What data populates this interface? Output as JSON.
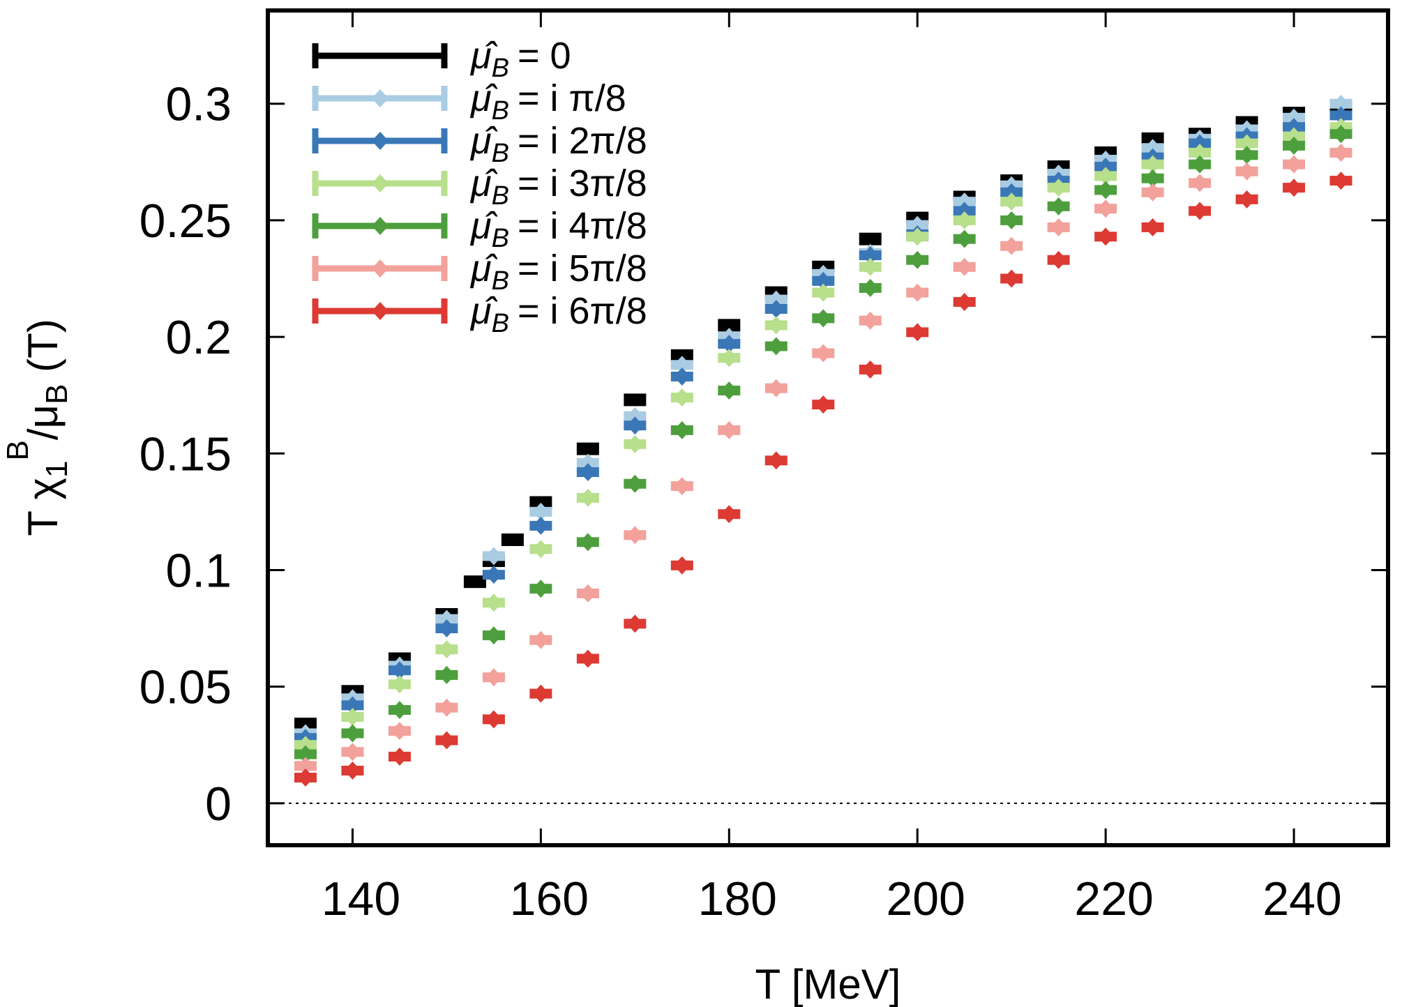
{
  "chart_data": {
    "type": "scatter",
    "xlabel": "T [MeV]",
    "ylabel": {
      "base": "T χ",
      "sub": "1",
      "sup": "B",
      "rest": "/μ",
      "sub2": "B",
      "tail": " (T)"
    },
    "xlim": [
      131,
      250
    ],
    "ylim": [
      -0.018,
      0.34
    ],
    "xticks": [
      140,
      160,
      180,
      200,
      220,
      240
    ],
    "yticks": [
      0,
      0.05,
      0.1,
      0.15,
      0.2,
      0.25,
      0.3
    ],
    "ytick_labels": [
      "0",
      "0.05",
      "0.1",
      "0.15",
      "0.2",
      "0.25",
      "0.3"
    ],
    "reference_line": {
      "y": 0,
      "style": "dotted"
    },
    "legend_position": "top-left",
    "legend_prefix": "μ̂",
    "legend_prefix_sub": "B",
    "series": [
      {
        "name": "μ̂B = 0",
        "legend_text": "= 0",
        "color": "#000000",
        "marker": "square",
        "x": [
          135,
          140,
          145,
          150,
          153,
          155,
          157,
          160,
          165,
          170,
          175,
          180,
          185,
          190,
          195,
          200,
          205,
          210,
          215,
          220,
          225,
          230,
          235,
          240,
          245
        ],
        "y": [
          0.034,
          0.048,
          0.062,
          0.081,
          0.095,
          0.104,
          0.113,
          0.129,
          0.152,
          0.173,
          0.192,
          0.205,
          0.219,
          0.23,
          0.242,
          0.251,
          0.26,
          0.267,
          0.273,
          0.279,
          0.285,
          0.287,
          0.292,
          0.296,
          0.299
        ]
      },
      {
        "name": "μ̂B = i π/8",
        "legend_text": "= i π/8",
        "color": "#a9cce3",
        "marker": "diamond",
        "x": [
          135,
          140,
          145,
          150,
          155,
          160,
          165,
          170,
          175,
          180,
          185,
          190,
          195,
          200,
          205,
          210,
          215,
          220,
          225,
          230,
          235,
          240,
          245
        ],
        "y": [
          0.03,
          0.045,
          0.059,
          0.079,
          0.106,
          0.125,
          0.146,
          0.166,
          0.188,
          0.2,
          0.216,
          0.227,
          0.236,
          0.248,
          0.258,
          0.265,
          0.27,
          0.276,
          0.281,
          0.285,
          0.289,
          0.294,
          0.3
        ]
      },
      {
        "name": "μ̂B = i 2π/8",
        "legend_text": "= i 2π/8",
        "color": "#3a77b7",
        "marker": "diamond",
        "x": [
          135,
          140,
          145,
          150,
          155,
          160,
          165,
          170,
          175,
          180,
          185,
          190,
          195,
          200,
          205,
          210,
          215,
          220,
          225,
          230,
          235,
          240,
          245
        ],
        "y": [
          0.028,
          0.042,
          0.057,
          0.075,
          0.098,
          0.119,
          0.142,
          0.162,
          0.183,
          0.197,
          0.212,
          0.224,
          0.235,
          0.244,
          0.254,
          0.262,
          0.267,
          0.273,
          0.277,
          0.283,
          0.286,
          0.29,
          0.295
        ]
      },
      {
        "name": "μ̂B = i 3π/8",
        "legend_text": "= i 3π/8",
        "color": "#b7df8c",
        "marker": "diamond",
        "x": [
          135,
          140,
          145,
          150,
          155,
          160,
          165,
          170,
          175,
          180,
          185,
          190,
          195,
          200,
          205,
          210,
          215,
          220,
          225,
          230,
          235,
          240,
          245
        ],
        "y": [
          0.025,
          0.037,
          0.051,
          0.066,
          0.086,
          0.109,
          0.131,
          0.154,
          0.174,
          0.191,
          0.205,
          0.219,
          0.23,
          0.243,
          0.25,
          0.258,
          0.264,
          0.269,
          0.274,
          0.279,
          0.283,
          0.286,
          0.29
        ]
      },
      {
        "name": "μ̂B = i 4π/8",
        "legend_text": "= i 4π/8",
        "color": "#4d9f3d",
        "marker": "diamond",
        "x": [
          135,
          140,
          145,
          150,
          155,
          160,
          165,
          170,
          175,
          180,
          185,
          190,
          195,
          200,
          205,
          210,
          215,
          220,
          225,
          230,
          235,
          240,
          245
        ],
        "y": [
          0.021,
          0.03,
          0.04,
          0.055,
          0.072,
          0.092,
          0.112,
          0.137,
          0.16,
          0.177,
          0.196,
          0.208,
          0.221,
          0.233,
          0.242,
          0.25,
          0.256,
          0.263,
          0.268,
          0.274,
          0.278,
          0.282,
          0.287
        ]
      },
      {
        "name": "μ̂B = i 5π/8",
        "legend_text": "= i 5π/8",
        "color": "#f2a19b",
        "marker": "diamond",
        "x": [
          135,
          140,
          145,
          150,
          155,
          160,
          165,
          170,
          175,
          180,
          185,
          190,
          195,
          200,
          205,
          210,
          215,
          220,
          225,
          230,
          235,
          240,
          245
        ],
        "y": [
          0.016,
          0.022,
          0.031,
          0.041,
          0.054,
          0.07,
          0.09,
          0.115,
          0.136,
          0.16,
          0.178,
          0.193,
          0.207,
          0.219,
          0.23,
          0.239,
          0.247,
          0.255,
          0.262,
          0.266,
          0.271,
          0.274,
          0.279
        ]
      },
      {
        "name": "μ̂B = i 6π/8",
        "legend_text": "= i 6π/8",
        "color": "#dc3a33",
        "marker": "diamond",
        "x": [
          135,
          140,
          145,
          150,
          155,
          160,
          165,
          170,
          175,
          180,
          185,
          190,
          195,
          200,
          205,
          210,
          215,
          220,
          225,
          230,
          235,
          240,
          245
        ],
        "y": [
          0.011,
          0.014,
          0.02,
          0.027,
          0.036,
          0.047,
          0.062,
          0.077,
          0.102,
          0.124,
          0.147,
          0.171,
          0.186,
          0.202,
          0.215,
          0.225,
          0.233,
          0.243,
          0.247,
          0.254,
          0.259,
          0.264,
          0.267
        ]
      }
    ]
  }
}
